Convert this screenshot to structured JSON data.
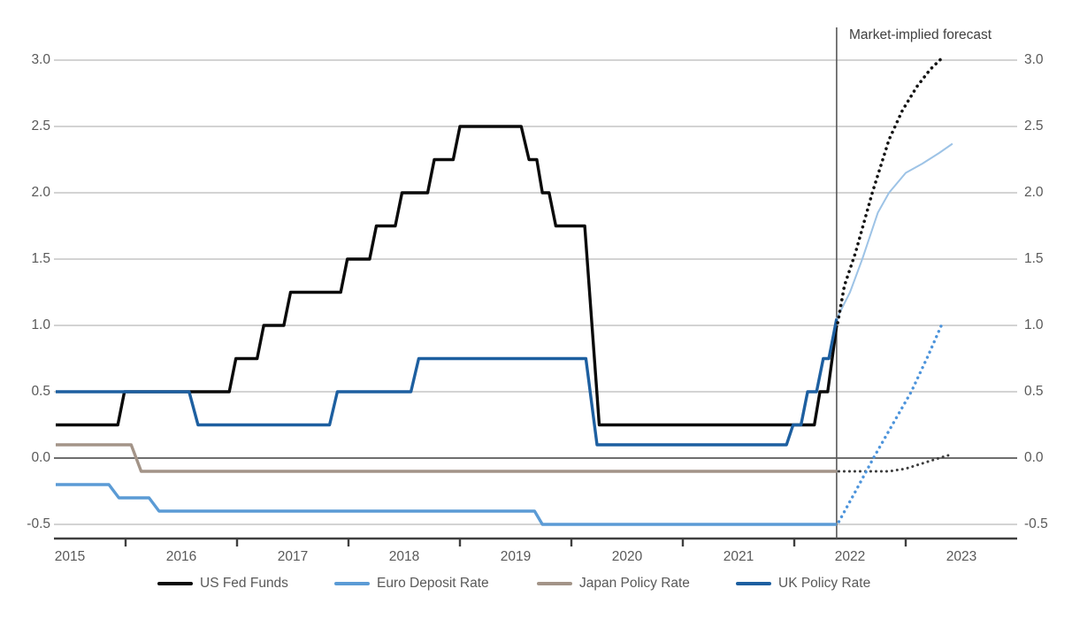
{
  "chart_data": {
    "type": "line",
    "title": "",
    "annotation": "Market-implied forecast",
    "xlabel": "",
    "ylabel": "",
    "ylim": [
      -0.5,
      3.0
    ],
    "x_range": [
      2015.37,
      2024.0
    ],
    "grid": "horizontal",
    "legend_position": "bottom",
    "y_ticks": [
      {
        "value": 3.0,
        "label": "3.0"
      },
      {
        "value": 2.5,
        "label": "2.5"
      },
      {
        "value": 2.0,
        "label": "2.0"
      },
      {
        "value": 1.5,
        "label": "1.5"
      },
      {
        "value": 1.0,
        "label": "1.0"
      },
      {
        "value": 0.5,
        "label": "0.5"
      },
      {
        "value": 0.0,
        "label": "0.0"
      },
      {
        "value": -0.5,
        "label": "-0.5"
      }
    ],
    "x_boundary_ticks": [
      2016,
      2017,
      2018,
      2019,
      2020,
      2021,
      2022,
      2023
    ],
    "x_labels": [
      {
        "t": 2015.5,
        "label": "2015"
      },
      {
        "t": 2016.5,
        "label": "2016"
      },
      {
        "t": 2017.5,
        "label": "2017"
      },
      {
        "t": 2018.5,
        "label": "2018"
      },
      {
        "t": 2019.5,
        "label": "2019"
      },
      {
        "t": 2020.5,
        "label": "2020"
      },
      {
        "t": 2021.5,
        "label": "2021"
      },
      {
        "t": 2022.5,
        "label": "2022"
      },
      {
        "t": 2023.5,
        "label": "2023"
      }
    ],
    "forecast_divider_t": 2022.38,
    "colors": {
      "us": "#0a0a0a",
      "us_forecast": "#141414",
      "euro": "#5b9bd5",
      "euro_forecast": "#4d94db",
      "japan": "#a39488",
      "japan_forecast": "#3c3c3c",
      "uk": "#1d5fa0",
      "uk_forecast": "#9dc3e6",
      "grid": "#b9b9b9",
      "zero_line": "#595959",
      "axis": "#3f3f3f",
      "divider": "#595959",
      "tick_text": "#595959"
    },
    "series": [
      {
        "id": "japan-policy-rate",
        "name": "Japan Policy Rate",
        "style": "solid",
        "color_key": "japan",
        "width": 3.4,
        "points": [
          [
            2015.373,
            0.1
          ],
          [
            2016.05,
            0.1
          ],
          [
            2016.14,
            -0.1
          ],
          [
            2022.38,
            -0.1
          ]
        ]
      },
      {
        "id": "japan-policy-rate-forecast",
        "name": "Japan Policy Rate (market-implied forecast)",
        "style": "dotted",
        "color_key": "japan_forecast",
        "width": 3.0,
        "points": [
          [
            2022.4,
            -0.1
          ],
          [
            2022.85,
            -0.1
          ],
          [
            2023.0,
            -0.08
          ],
          [
            2023.15,
            -0.04
          ],
          [
            2023.3,
            0.0
          ],
          [
            2023.38,
            0.02
          ]
        ]
      },
      {
        "id": "euro-deposit-rate",
        "name": "Euro Deposit Rate",
        "style": "solid",
        "color_key": "euro",
        "width": 3.4,
        "points": [
          [
            2015.373,
            -0.2
          ],
          [
            2015.85,
            -0.2
          ],
          [
            2015.94,
            -0.3
          ],
          [
            2016.21,
            -0.3
          ],
          [
            2016.3,
            -0.4
          ],
          [
            2019.67,
            -0.4
          ],
          [
            2019.74,
            -0.5
          ],
          [
            2022.38,
            -0.5
          ]
        ]
      },
      {
        "id": "euro-deposit-rate-forecast",
        "name": "Euro Deposit Rate (market-implied forecast)",
        "style": "dotted",
        "color_key": "euro_forecast",
        "width": 3.4,
        "points": [
          [
            2022.4,
            -0.48
          ],
          [
            2022.55,
            -0.25
          ],
          [
            2022.71,
            0.0
          ],
          [
            2022.9,
            0.28
          ],
          [
            2023.05,
            0.5
          ],
          [
            2023.2,
            0.77
          ],
          [
            2023.32,
            1.0
          ]
        ]
      },
      {
        "id": "uk-policy-rate-forecast",
        "name": "UK Policy Rate (market-implied forecast)",
        "style": "solid",
        "color_key": "uk_forecast",
        "width": 2.0,
        "points": [
          [
            2022.38,
            1.05
          ],
          [
            2022.5,
            1.25
          ],
          [
            2022.61,
            1.5
          ],
          [
            2022.75,
            1.85
          ],
          [
            2022.85,
            2.0
          ],
          [
            2022.95,
            2.1
          ],
          [
            2023.0,
            2.15
          ],
          [
            2023.15,
            2.22
          ],
          [
            2023.3,
            2.3
          ],
          [
            2023.42,
            2.37
          ]
        ]
      },
      {
        "id": "us-fed-funds",
        "name": "US Fed Funds",
        "style": "solid",
        "color_key": "us",
        "width": 3.4,
        "points": [
          [
            2015.373,
            0.25
          ],
          [
            2015.93,
            0.25
          ],
          [
            2015.99,
            0.5
          ],
          [
            2016.93,
            0.5
          ],
          [
            2016.99,
            0.75
          ],
          [
            2017.18,
            0.75
          ],
          [
            2017.24,
            1.0
          ],
          [
            2017.42,
            1.0
          ],
          [
            2017.48,
            1.25
          ],
          [
            2017.93,
            1.25
          ],
          [
            2017.99,
            1.5
          ],
          [
            2018.19,
            1.5
          ],
          [
            2018.25,
            1.75
          ],
          [
            2018.42,
            1.75
          ],
          [
            2018.48,
            2.0
          ],
          [
            2018.71,
            2.0
          ],
          [
            2018.77,
            2.25
          ],
          [
            2018.94,
            2.25
          ],
          [
            2019.0,
            2.5
          ],
          [
            2019.55,
            2.5
          ],
          [
            2019.62,
            2.25
          ],
          [
            2019.69,
            2.25
          ],
          [
            2019.74,
            2.0
          ],
          [
            2019.8,
            2.0
          ],
          [
            2019.86,
            1.75
          ],
          [
            2020.12,
            1.75
          ],
          [
            2020.25,
            0.25
          ],
          [
            2022.18,
            0.25
          ],
          [
            2022.23,
            0.5
          ],
          [
            2022.3,
            0.5
          ],
          [
            2022.38,
            1.0
          ]
        ]
      },
      {
        "id": "uk-policy-rate",
        "name": "UK Policy Rate",
        "style": "solid",
        "color_key": "uk",
        "width": 3.4,
        "points": [
          [
            2015.373,
            0.5
          ],
          [
            2016.57,
            0.5
          ],
          [
            2016.65,
            0.25
          ],
          [
            2017.83,
            0.25
          ],
          [
            2017.9,
            0.5
          ],
          [
            2018.56,
            0.5
          ],
          [
            2018.63,
            0.75
          ],
          [
            2020.13,
            0.75
          ],
          [
            2020.23,
            0.1
          ],
          [
            2021.93,
            0.1
          ],
          [
            2021.99,
            0.25
          ],
          [
            2022.06,
            0.25
          ],
          [
            2022.12,
            0.5
          ],
          [
            2022.2,
            0.5
          ],
          [
            2022.26,
            0.75
          ],
          [
            2022.31,
            0.75
          ],
          [
            2022.38,
            1.05
          ]
        ]
      },
      {
        "id": "us-fed-funds-forecast",
        "name": "US Fed Funds (market-implied forecast)",
        "style": "dotted",
        "color_key": "us_forecast",
        "width": 3.6,
        "points": [
          [
            2022.39,
            1.02
          ],
          [
            2022.45,
            1.3
          ],
          [
            2022.55,
            1.55
          ],
          [
            2022.7,
            2.0
          ],
          [
            2022.85,
            2.4
          ],
          [
            2022.97,
            2.62
          ],
          [
            2023.1,
            2.8
          ],
          [
            2023.22,
            2.93
          ],
          [
            2023.33,
            3.02
          ]
        ]
      }
    ],
    "legend": [
      {
        "id": "us-fed-funds",
        "label": "US Fed Funds",
        "color_key": "us"
      },
      {
        "id": "euro-deposit-rate",
        "label": "Euro Deposit Rate",
        "color_key": "euro"
      },
      {
        "id": "japan-policy-rate",
        "label": "Japan Policy Rate",
        "color_key": "japan"
      },
      {
        "id": "uk-policy-rate",
        "label": "UK Policy Rate",
        "color_key": "uk"
      }
    ]
  }
}
